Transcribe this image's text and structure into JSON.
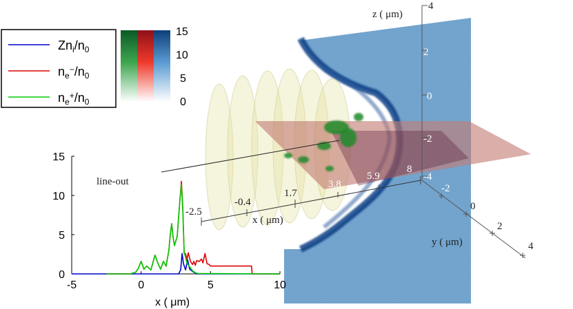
{
  "legend": {
    "entries": [
      {
        "base": "Zn",
        "sub": "i",
        "rest": "/n",
        "sub2": "0",
        "color": "#0000cc"
      },
      {
        "base": "n",
        "sub": "e",
        "sup": "−",
        "rest": "/n",
        "sub2": "0",
        "color": "#dd0000"
      },
      {
        "base": "n",
        "sub": "e",
        "sup": "+",
        "rest": "/n",
        "sub2": "0",
        "color": "#00cc00"
      }
    ]
  },
  "colorbar": {
    "ticks": [
      "15",
      "10",
      "5",
      "0"
    ],
    "values": [
      15,
      10,
      5,
      0
    ],
    "colors": {
      "green": "#0b6b2e",
      "red": "#b31c24",
      "blue": "#155a9c"
    }
  },
  "annotation": {
    "lineout": "line-out"
  },
  "volume_axes": {
    "x_label": "x ( μm)",
    "x_ticks": [
      "-2.5",
      "-0.4",
      "1.7",
      "3.8",
      "5.9",
      "8"
    ],
    "y_label": "y ( μm)",
    "y_ticks": [
      "-2",
      "0",
      "2",
      "4"
    ],
    "z_label": "z ( μm)",
    "z_ticks": [
      "4",
      "2",
      "0",
      "-2",
      "-4"
    ]
  },
  "chart_data": {
    "type": "line",
    "xlabel": "x ( μm)",
    "ylabel": "",
    "xlim": [
      -5,
      10
    ],
    "ylim": [
      0,
      15
    ],
    "xticks": [
      -5,
      0,
      5,
      10
    ],
    "yticks": [
      0,
      5,
      10,
      15
    ],
    "series": [
      {
        "name": "Zn_i/n_0",
        "color": "#0000cc",
        "x": [
          -5,
          2.7,
          2.85,
          2.95,
          3.05,
          3.2,
          3.35,
          3.5,
          3.8,
          4.0,
          10
        ],
        "y": [
          0,
          0,
          0.5,
          2.6,
          1.3,
          0.5,
          1.8,
          0.6,
          0.2,
          0,
          0
        ]
      },
      {
        "name": "n_e-/n_0",
        "color": "#dd0000",
        "x": [
          -2.5,
          -0.8,
          -0.4,
          -0.2,
          0.0,
          0.2,
          0.4,
          0.7,
          1.0,
          1.2,
          1.4,
          1.6,
          1.8,
          2.0,
          2.1,
          2.2,
          2.3,
          2.4,
          2.6,
          2.7,
          2.8,
          2.9,
          3.0,
          3.1,
          3.2,
          3.3,
          3.4,
          3.55,
          3.7,
          3.8,
          3.9,
          4.0,
          4.2,
          4.35,
          4.45,
          4.6,
          4.75,
          4.9,
          5.0,
          7.95,
          8.0,
          8.05,
          10
        ],
        "y": [
          0,
          0,
          0.2,
          0.7,
          1.6,
          0.6,
          1.0,
          0.5,
          2.4,
          1.4,
          0.6,
          1.6,
          1.0,
          3.0,
          5.0,
          6.4,
          4.7,
          3.6,
          4.8,
          7.2,
          9.5,
          11.8,
          8.5,
          2.6,
          2.6,
          1.8,
          2.7,
          1.6,
          1.2,
          1.6,
          1.1,
          1.7,
          1.6,
          1.9,
          1.4,
          2.6,
          1.3,
          1.2,
          1.0,
          1.0,
          0.1,
          0,
          0
        ]
      },
      {
        "name": "n_e+/n_0",
        "color": "#00cc00",
        "x": [
          -2.5,
          -0.8,
          -0.4,
          -0.2,
          0.0,
          0.2,
          0.4,
          0.7,
          1.0,
          1.2,
          1.4,
          1.6,
          1.8,
          2.0,
          2.1,
          2.2,
          2.3,
          2.4,
          2.6,
          2.7,
          2.8,
          2.9,
          3.0,
          3.1,
          3.3,
          3.5,
          3.7,
          3.9,
          4.1,
          10
        ],
        "y": [
          0,
          0,
          0.2,
          0.7,
          1.6,
          0.6,
          1.0,
          0.5,
          2.4,
          1.4,
          0.6,
          1.6,
          1.0,
          3.0,
          5.0,
          6.4,
          4.7,
          3.6,
          4.8,
          7.2,
          9.5,
          11.4,
          8.0,
          2.8,
          1.4,
          0.9,
          0.4,
          0.15,
          0.05,
          0
        ]
      }
    ]
  }
}
